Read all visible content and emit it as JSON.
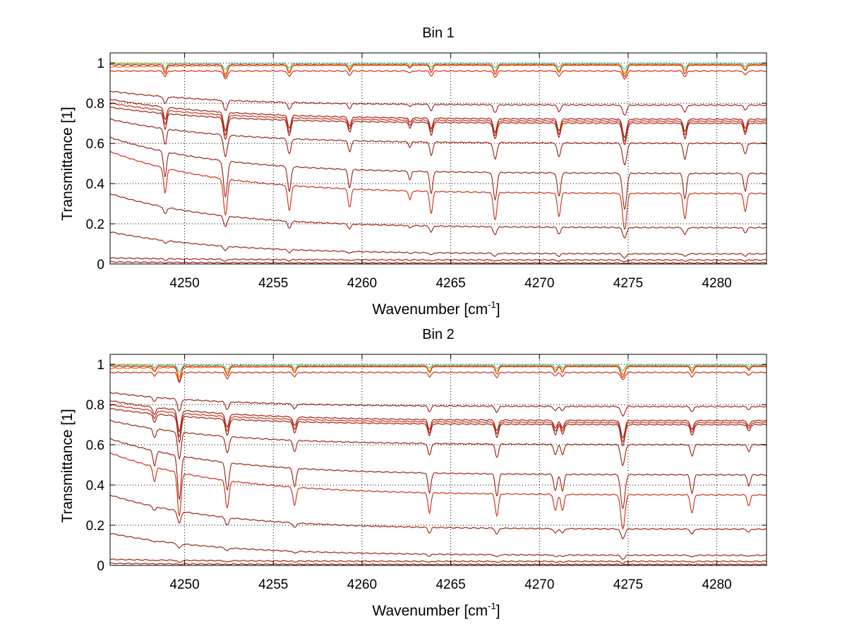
{
  "colors": {
    "line_dark": "#9b1d0f",
    "line_red": "#cc2a10",
    "line_orange": "#ff6a00",
    "line_amber": "#ffb300",
    "line_yellow": "#e8e000",
    "line_cyan": "#40c8c0",
    "axis": "#000000",
    "grid": "#000000"
  },
  "chart_data": [
    {
      "type": "line",
      "title": "Bin 1",
      "xlabel_main": "Wavenumber [cm",
      "xlabel_sup": "-1",
      "xlabel_end": "]",
      "ylabel": "Transmittance [1]",
      "xlim": [
        4245.8,
        4282.8
      ],
      "ylim": [
        0,
        1.05
      ],
      "xticks": [
        4250,
        4255,
        4260,
        4265,
        4270,
        4275,
        4280
      ],
      "xtick_labels": [
        "4250",
        "4255",
        "4260",
        "4265",
        "4270",
        "4275",
        "4280"
      ],
      "yticks": [
        0,
        0.2,
        0.4,
        0.6,
        0.8,
        1
      ],
      "ytick_labels": [
        "0",
        "0.2",
        "0.4",
        "0.6",
        "0.8",
        "1"
      ],
      "grid": true,
      "absorption_lines": [
        {
          "x": 4248.9,
          "depth": 0.7,
          "width": 0.12
        },
        {
          "x": 4252.3,
          "depth": 1.0,
          "width": 0.15
        },
        {
          "x": 4255.9,
          "depth": 0.7,
          "width": 0.13
        },
        {
          "x": 4259.3,
          "depth": 0.5,
          "width": 0.12
        },
        {
          "x": 4262.7,
          "depth": 0.25,
          "width": 0.1
        },
        {
          "x": 4263.9,
          "depth": 0.6,
          "width": 0.12
        },
        {
          "x": 4267.5,
          "depth": 0.75,
          "width": 0.14
        },
        {
          "x": 4271.1,
          "depth": 0.65,
          "width": 0.13
        },
        {
          "x": 4274.8,
          "depth": 1.0,
          "width": 0.16
        },
        {
          "x": 4278.2,
          "depth": 0.7,
          "width": 0.13
        },
        {
          "x": 4281.6,
          "depth": 0.5,
          "width": 0.12
        }
      ],
      "series": [
        {
          "start": 0.98,
          "end": 0.99,
          "line_scale": 0.04,
          "color": "line_orange"
        },
        {
          "start": 1.0,
          "end": 0.995,
          "line_scale": 0.05,
          "color": "line_amber"
        },
        {
          "start": 0.995,
          "end": 0.998,
          "line_scale": 0.03,
          "color": "line_cyan"
        },
        {
          "start": 0.99,
          "end": 0.99,
          "line_scale": 0.06,
          "color": "line_red"
        },
        {
          "start": 0.96,
          "end": 0.96,
          "line_scale": 0.04,
          "color": "line_red"
        },
        {
          "start": 0.86,
          "end": 0.79,
          "line_scale": 0.05,
          "color": "line_dark"
        },
        {
          "start": 0.82,
          "end": 0.72,
          "line_scale": 0.09,
          "color": "line_dark"
        },
        {
          "start": 0.8,
          "end": 0.71,
          "line_scale": 0.1,
          "color": "line_red"
        },
        {
          "start": 0.78,
          "end": 0.7,
          "line_scale": 0.11,
          "color": "line_dark"
        },
        {
          "start": 0.72,
          "end": 0.6,
          "line_scale": 0.11,
          "color": "line_dark"
        },
        {
          "start": 0.63,
          "end": 0.45,
          "line_scale": 0.18,
          "color": "line_dark"
        },
        {
          "start": 0.56,
          "end": 0.35,
          "line_scale": 0.18,
          "color": "line_red"
        },
        {
          "start": 0.35,
          "end": 0.18,
          "line_scale": 0.05,
          "color": "line_dark"
        },
        {
          "start": 0.16,
          "end": 0.05,
          "line_scale": 0.02,
          "color": "line_dark"
        },
        {
          "start": 0.03,
          "end": 0.02,
          "line_scale": 0.01,
          "color": "line_dark"
        },
        {
          "start": 0.01,
          "end": 0.005,
          "line_scale": 0.003,
          "color": "line_dark"
        }
      ]
    },
    {
      "type": "line",
      "title": "Bin 2",
      "xlabel_main": "Wavenumber [cm",
      "xlabel_sup": "-1",
      "xlabel_end": "]",
      "ylabel": "Transmittance [1]",
      "xlim": [
        4245.8,
        4282.8
      ],
      "ylim": [
        0,
        1.05
      ],
      "xticks": [
        4250,
        4255,
        4260,
        4265,
        4270,
        4275,
        4280
      ],
      "xtick_labels": [
        "4250",
        "4255",
        "4260",
        "4265",
        "4270",
        "4275",
        "4280"
      ],
      "yticks": [
        0,
        0.2,
        0.4,
        0.6,
        0.8,
        1
      ],
      "ytick_labels": [
        "0",
        "0.2",
        "0.4",
        "0.6",
        "0.8",
        "1"
      ],
      "grid": true,
      "absorption_lines": [
        {
          "x": 4248.3,
          "depth": 0.4,
          "width": 0.12
        },
        {
          "x": 4249.7,
          "depth": 1.2,
          "width": 0.14
        },
        {
          "x": 4252.4,
          "depth": 0.75,
          "width": 0.14
        },
        {
          "x": 4256.2,
          "depth": 0.5,
          "width": 0.13
        },
        {
          "x": 4263.8,
          "depth": 0.55,
          "width": 0.12
        },
        {
          "x": 4267.6,
          "depth": 0.6,
          "width": 0.13
        },
        {
          "x": 4270.9,
          "depth": 0.45,
          "width": 0.13
        },
        {
          "x": 4271.3,
          "depth": 0.45,
          "width": 0.12
        },
        {
          "x": 4274.7,
          "depth": 0.95,
          "width": 0.16
        },
        {
          "x": 4278.6,
          "depth": 0.5,
          "width": 0.13
        },
        {
          "x": 4281.8,
          "depth": 0.3,
          "width": 0.12
        }
      ],
      "series": [
        {
          "start": 0.98,
          "end": 0.99,
          "line_scale": 0.04,
          "color": "line_orange"
        },
        {
          "start": 1.0,
          "end": 0.995,
          "line_scale": 0.05,
          "color": "line_amber"
        },
        {
          "start": 0.995,
          "end": 0.998,
          "line_scale": 0.03,
          "color": "line_cyan"
        },
        {
          "start": 0.99,
          "end": 0.99,
          "line_scale": 0.06,
          "color": "line_red"
        },
        {
          "start": 0.96,
          "end": 0.96,
          "line_scale": 0.04,
          "color": "line_red"
        },
        {
          "start": 0.86,
          "end": 0.79,
          "line_scale": 0.05,
          "color": "line_dark"
        },
        {
          "start": 0.82,
          "end": 0.72,
          "line_scale": 0.09,
          "color": "line_dark"
        },
        {
          "start": 0.8,
          "end": 0.71,
          "line_scale": 0.1,
          "color": "line_red"
        },
        {
          "start": 0.78,
          "end": 0.7,
          "line_scale": 0.11,
          "color": "line_dark"
        },
        {
          "start": 0.72,
          "end": 0.6,
          "line_scale": 0.11,
          "color": "line_dark"
        },
        {
          "start": 0.63,
          "end": 0.45,
          "line_scale": 0.18,
          "color": "line_dark"
        },
        {
          "start": 0.56,
          "end": 0.35,
          "line_scale": 0.18,
          "color": "line_red"
        },
        {
          "start": 0.35,
          "end": 0.18,
          "line_scale": 0.05,
          "color": "line_dark"
        },
        {
          "start": 0.16,
          "end": 0.05,
          "line_scale": 0.02,
          "color": "line_dark"
        },
        {
          "start": 0.03,
          "end": 0.02,
          "line_scale": 0.01,
          "color": "line_dark"
        },
        {
          "start": 0.01,
          "end": 0.005,
          "line_scale": 0.003,
          "color": "line_dark"
        }
      ]
    }
  ]
}
